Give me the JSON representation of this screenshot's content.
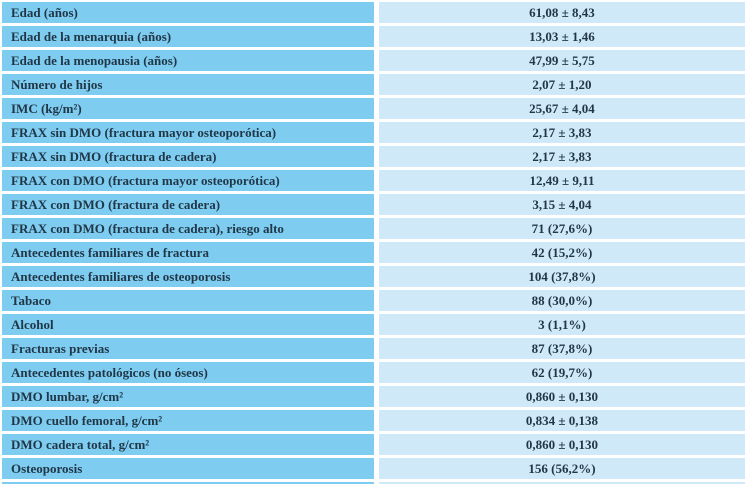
{
  "table": {
    "rows": [
      {
        "label": "Edad (años)",
        "value": "61,08 ± 8,43"
      },
      {
        "label": "Edad de la menarquia (años)",
        "value": "13,03 ± 1,46"
      },
      {
        "label": "Edad de la menopausia (años)",
        "value": "47,99 ± 5,75"
      },
      {
        "label": "Número de hijos",
        "value": "2,07 ± 1,20"
      },
      {
        "label": "IMC (kg/m²)",
        "value": "25,67 ± 4,04"
      },
      {
        "label": "FRAX sin DMO (fractura mayor osteoporótica)",
        "value": "2,17 ± 3,83"
      },
      {
        "label": "FRAX sin DMO (fractura de cadera)",
        "value": "2,17 ± 3,83"
      },
      {
        "label": "FRAX con DMO (fractura mayor osteoporótica)",
        "value": "12,49 ± 9,11"
      },
      {
        "label": "FRAX con DMO (fractura de cadera)",
        "value": "3,15 ± 4,04"
      },
      {
        "label": "FRAX con DMO (fractura de cadera), riesgo alto",
        "value": "71 (27,6%)"
      },
      {
        "label": "Antecedentes familiares de fractura",
        "value": "42 (15,2%)"
      },
      {
        "label": "Antecedentes familiares de osteoporosis",
        "value": "104 (37,8%)"
      },
      {
        "label": "Tabaco",
        "value": "88 (30,0%)"
      },
      {
        "label": "Alcohol",
        "value": "3 (1,1%)"
      },
      {
        "label": "Fracturas previas",
        "value": "87 (37,8%)"
      },
      {
        "label": "Antecedentes patológicos (no óseos)",
        "value": "62 (19,7%)"
      },
      {
        "label": "DMO lumbar, g/cm²",
        "value": "0,860 ± 0,130"
      },
      {
        "label": "DMO cuello femoral, g/cm²",
        "value": "0,834 ± 0,138"
      },
      {
        "label": "DMO cadera total, g/cm²",
        "value": "0,860 ± 0,130"
      },
      {
        "label": "Osteoporosis",
        "value": "156 (56,2%)"
      }
    ]
  },
  "colors": {
    "label_cell_bg": "#7ecdf1",
    "value_cell_bg": "#d0e9f9",
    "gutter": "#ffffff",
    "text": "#213748"
  }
}
